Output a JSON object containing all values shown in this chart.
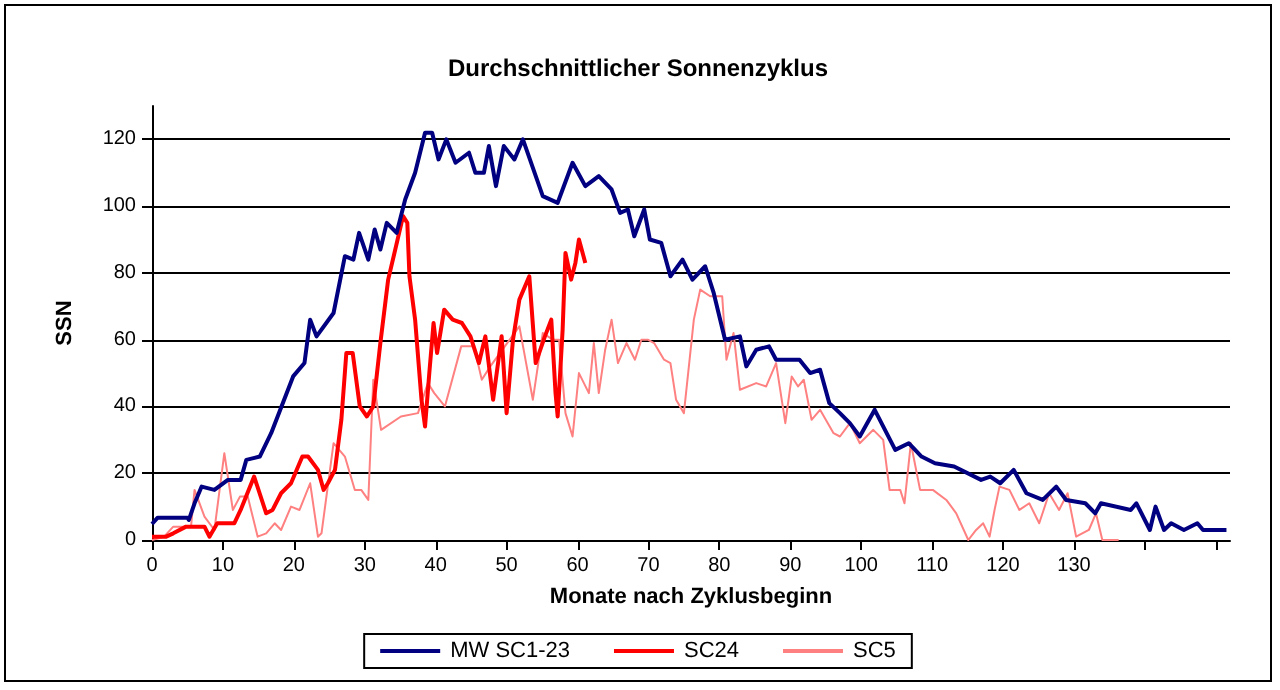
{
  "chart_data": {
    "type": "line",
    "title": "Durchschnittlicher Sonnenzyklus",
    "xlabel": "Monate nach Zyklusbeginn",
    "ylabel": "SSN",
    "xlim": [
      0,
      152
    ],
    "xticks": [
      0,
      10,
      20,
      30,
      40,
      50,
      60,
      70,
      80,
      90,
      100,
      110,
      120,
      130,
      {
        "value": 140,
        "label": null
      },
      {
        "value": 150,
        "label": null
      }
    ],
    "ylim": [
      0,
      130
    ],
    "yticks": [
      0,
      20,
      40,
      60,
      80,
      100,
      120
    ],
    "grid": "y",
    "legend": "bottom",
    "marker": "none",
    "line_style": "solid",
    "series": [
      {
        "name": "MW SC1-23",
        "color": "#000080",
        "x": [
          0,
          0.8,
          5,
          5.2,
          6,
          7,
          8.8,
          10.7,
          12.5,
          13.3,
          15.2,
          16.8,
          19.9,
          21.5,
          22.3,
          23.2,
          25.6,
          27.2,
          28.4,
          29.2,
          30.5,
          31.4,
          32.2,
          33.1,
          34.5,
          35.7,
          37.1,
          38.5,
          39.5,
          40.4,
          41.5,
          42.8,
          44.7,
          45.6,
          46.8,
          47.5,
          48.5,
          49.6,
          51.1,
          52.3,
          55.1,
          57.2,
          59.3,
          61.1,
          63,
          64.8,
          66,
          67.1,
          68,
          69.4,
          70.2,
          71.8,
          73.1,
          74.8,
          76.2,
          78,
          79.2,
          80.8,
          82.9,
          83.8,
          85.2,
          87,
          88,
          91.3,
          92.8,
          94.2,
          95.5,
          97,
          98.4,
          99.8,
          101.9,
          104.8,
          106.7,
          108.5,
          110.4,
          113.1,
          116.9,
          118.2,
          119.6,
          121.5,
          123.3,
          125.6,
          127.5,
          128.9,
          131.6,
          133,
          133.8,
          138,
          138.8,
          140.7,
          141.5,
          142.7,
          143.7,
          145.5,
          147.4,
          148.2,
          151.5
        ],
        "values": [
          4.8,
          6.7,
          6.7,
          6,
          11,
          16,
          15,
          18,
          18,
          24,
          25,
          32,
          49,
          53,
          66,
          61,
          68,
          85,
          84,
          92,
          84,
          93,
          87,
          95,
          92,
          102,
          110,
          122,
          122,
          114,
          120,
          113,
          116,
          110,
          110,
          118,
          106,
          118,
          114,
          120,
          103,
          101,
          113,
          106,
          109,
          105,
          98,
          99,
          91,
          99,
          90,
          89,
          79,
          84,
          78,
          82,
          74,
          60,
          61,
          52,
          57,
          58,
          54,
          54,
          50,
          51,
          41,
          38,
          35,
          31,
          39,
          27,
          29,
          25,
          23,
          22,
          18,
          19,
          17,
          21,
          14,
          12,
          16,
          12,
          11,
          8,
          11,
          9,
          11,
          3,
          10,
          3,
          5,
          3,
          5,
          3,
          3
        ]
      },
      {
        "name": "SC24",
        "color": "#ff0000",
        "x": [
          0,
          2,
          3,
          4.8,
          7.4,
          8.1,
          9.2,
          11.6,
          12.5,
          14.4,
          16.1,
          17,
          18.2,
          19.6,
          21.2,
          22,
          23.4,
          24.2,
          24.8,
          25.8,
          26.7,
          27.4,
          28.3,
          29.3,
          30.3,
          31.2,
          32.2,
          33.3,
          34.3,
          35.4,
          36,
          36.3,
          37.1,
          38,
          38.5,
          39.1,
          39.7,
          40.2,
          41.2,
          42.4,
          43.7,
          44.9,
          46.1,
          47,
          48.1,
          49.3,
          50,
          50.9,
          51.8,
          53.2,
          54.1,
          55.4,
          56.3,
          56.9,
          57.2,
          57.9,
          58.3,
          59.1,
          59.7,
          60.2,
          61.1
        ],
        "values": [
          1,
          1,
          2,
          4,
          4,
          1,
          5,
          5,
          9,
          19,
          8,
          9,
          14,
          17,
          25,
          25,
          21,
          15,
          17,
          21,
          36,
          56,
          56,
          40,
          37,
          40,
          59,
          78,
          87,
          97,
          95,
          79,
          66,
          42,
          34,
          50,
          65,
          56,
          69,
          66,
          65,
          61,
          53,
          61,
          42,
          61,
          38,
          60,
          72,
          79,
          53,
          61,
          66,
          44,
          37,
          63,
          86,
          78,
          83,
          90,
          83
        ]
      },
      {
        "name": "SC5",
        "color": "#ff8080",
        "x": [
          0,
          1.7,
          3,
          5.5,
          6,
          7.4,
          8.8,
          10.2,
          11.4,
          12.4,
          13.5,
          14.9,
          16.1,
          17.3,
          18.2,
          19.6,
          20.8,
          22.3,
          23.4,
          23.9,
          25.6,
          27.2,
          28.6,
          29.5,
          30.5,
          31.2,
          32.3,
          35.1,
          37.5,
          38.9,
          39.8,
          41.3,
          43.6,
          45.4,
          46.5,
          47.7,
          51.8,
          53.7,
          55.1,
          56.5,
          57.4,
          58.3,
          59.3,
          60.2,
          61.6,
          62.3,
          63,
          63.9,
          64.8,
          65.7,
          66.9,
          68.1,
          69,
          69.9,
          70.8,
          72.2,
          73.1,
          73.9,
          75,
          76.4,
          77.3,
          78.7,
          80.4,
          81,
          82,
          82.9,
          85.2,
          86.6,
          88,
          89.3,
          90.2,
          91.1,
          91.9,
          93,
          94.2,
          96.1,
          97,
          98.4,
          99.8,
          101.7,
          103.1,
          104,
          105.5,
          106.1,
          107,
          108.3,
          110.1,
          112,
          113.4,
          115.1,
          116.2,
          117.2,
          118.1,
          118.8,
          119.5,
          120.9,
          122.3,
          123.7,
          125.1,
          126.5,
          127.9,
          129.1,
          130.3,
          132.1,
          133.1,
          134,
          136.3
        ],
        "values": [
          0,
          1,
          4,
          4,
          15,
          7,
          3,
          26,
          9,
          13,
          13,
          1,
          2,
          5,
          3,
          10,
          9,
          17,
          1,
          2,
          29,
          25,
          15,
          15,
          12,
          48,
          33,
          37,
          38,
          47,
          44,
          40,
          58,
          58,
          48,
          52,
          64,
          42,
          62,
          60,
          60,
          38,
          31,
          50,
          44,
          59,
          44,
          57,
          66,
          53,
          59,
          54,
          60,
          60,
          59,
          54,
          53,
          42,
          38,
          66,
          75,
          73,
          73,
          54,
          62,
          45,
          47,
          46,
          53,
          35,
          49,
          46,
          48,
          36,
          39,
          32,
          31,
          35,
          29,
          33,
          30,
          15,
          15,
          11,
          29,
          15,
          15,
          12,
          8,
          0,
          3,
          5,
          1,
          9,
          16,
          15,
          9,
          11,
          5,
          14,
          9,
          14,
          1,
          3,
          8,
          0,
          0
        ]
      }
    ]
  }
}
